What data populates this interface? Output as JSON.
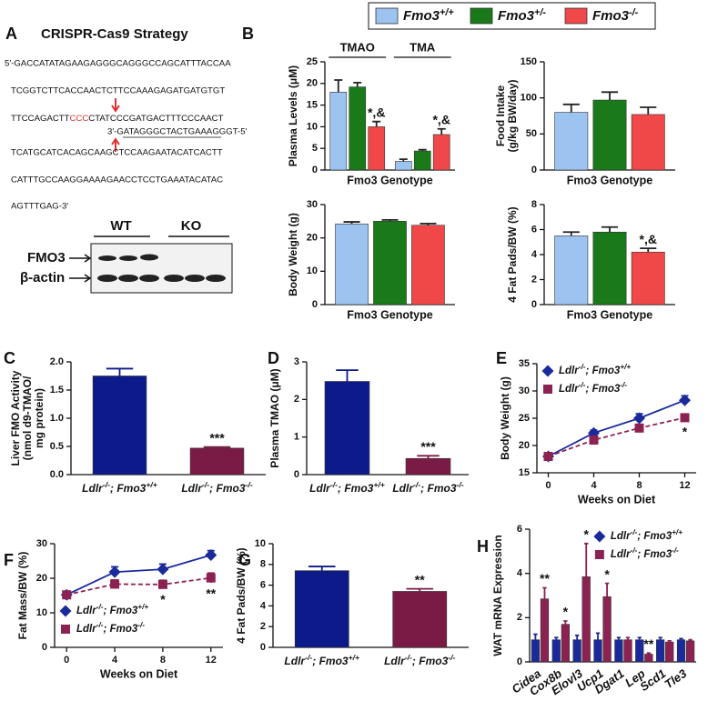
{
  "panel_labels": [
    "A",
    "B",
    "C",
    "D",
    "E",
    "F",
    "G",
    "H"
  ],
  "strategy": {
    "title": "CRISPR-Cas9 Strategy",
    "sequence": {
      "line1": "5′-GACCATATAGAAGAGGGCAGGGCCAGCATTTACCAA",
      "line2": "TCGGTCTTCACCAACTCTTCCAAAGAGATGATGTGT",
      "line3_start": "TTCCAGACTT",
      "pam": "CCC",
      "line3_end": "CTATCCCGATGACTTTCCCAACT",
      "guide": "3′-GATAGGGCTACTGAAAGGGT-5′",
      "line4": "TCATGCATCACAGCAAGCTCCAAGAATACATCACTT",
      "line5": "CATTTGCCAAGGAAAAGAACCTCCTGAAATACATAC",
      "line6": "AGTTTGAG-3′"
    },
    "blot": {
      "lanes": [
        "WT",
        "KO"
      ],
      "bands": [
        "FMO3",
        "β-actin"
      ]
    }
  },
  "shared_legend": [
    {
      "name": "Fmo3+/+",
      "color": "#9dc3f0"
    },
    {
      "name": "Fmo3+/-",
      "color": "#1a7a1a"
    },
    {
      "name": "Fmo3-/-",
      "color": "#f04848"
    }
  ],
  "chart_data": [
    {
      "type": "bar",
      "ylabel": "Plasma Levels (μM)",
      "xlabel": "Fmo3 Genotype",
      "categories": [
        "TMAO",
        "TMA"
      ],
      "category_position": "top",
      "ylim": [
        0,
        25
      ],
      "yticks": [
        0,
        5,
        10,
        15,
        20,
        25
      ],
      "series": [
        {
          "color": "#9dc3f0",
          "values": [
            18,
            2
          ],
          "errors": [
            2.8,
            0.5
          ]
        },
        {
          "color": "#1a7a1a",
          "values": [
            19.2,
            4.4
          ],
          "errors": [
            1,
            0.3
          ]
        },
        {
          "color": "#f04848",
          "values": [
            10,
            8.2
          ],
          "errors": [
            1.2,
            1.3
          ],
          "significance": [
            "*,&",
            "*,&"
          ]
        }
      ]
    },
    {
      "type": "bar",
      "ylabel": [
        "Food Intake",
        "(g/kg BW/day)"
      ],
      "xlabel": "Fmo3 Genotype",
      "ylim": [
        0,
        150
      ],
      "yticks": [
        0,
        50,
        100,
        150
      ],
      "series": [
        {
          "color": "#9dc3f0",
          "values": [
            80
          ],
          "errors": [
            11
          ]
        },
        {
          "color": "#1a7a1a",
          "values": [
            97
          ],
          "errors": [
            11
          ]
        },
        {
          "color": "#f04848",
          "values": [
            77
          ],
          "errors": [
            10
          ]
        }
      ]
    },
    {
      "type": "bar",
      "ylabel": "Body Weight (g)",
      "xlabel": "Fmo3 Genotype",
      "ylim": [
        0,
        30
      ],
      "yticks": [
        0,
        10,
        20,
        30
      ],
      "series": [
        {
          "color": "#9dc3f0",
          "values": [
            24.2
          ],
          "errors": [
            0.6
          ]
        },
        {
          "color": "#1a7a1a",
          "values": [
            25
          ],
          "errors": [
            0.4
          ]
        },
        {
          "color": "#f04848",
          "values": [
            23.8
          ],
          "errors": [
            0.5
          ]
        }
      ]
    },
    {
      "type": "bar",
      "ylabel": "4 Fat Pads/BW (%)",
      "xlabel": "Fmo3 Genotype",
      "ylim": [
        0,
        8
      ],
      "yticks": [
        0,
        2,
        4,
        6,
        8
      ],
      "series": [
        {
          "color": "#9dc3f0",
          "values": [
            5.5
          ],
          "errors": [
            0.3
          ]
        },
        {
          "color": "#1a7a1a",
          "values": [
            5.8
          ],
          "errors": [
            0.4
          ]
        },
        {
          "color": "#f04848",
          "values": [
            4.2
          ],
          "errors": [
            0.3
          ],
          "significance": [
            "*,&"
          ]
        }
      ]
    },
    {
      "type": "bar",
      "ylabel": [
        "Liver FMO Activity",
        "(nmol d9-TMAO/",
        "mg protein)"
      ],
      "categories": [
        "Ldlr-/-; Fmo3+/+",
        "Ldlr-/-; Fmo3-/-"
      ],
      "ylim": [
        0,
        2
      ],
      "yticks": [
        {
          "value": 0,
          "label": "0.0"
        },
        {
          "value": 0.5,
          "label": "0.5"
        },
        {
          "value": 1,
          "label": "1.0"
        },
        {
          "value": 1.5,
          "label": "1.5"
        },
        {
          "value": 2,
          "label": "2.0"
        }
      ],
      "colors": [
        "#0d1a8a",
        "#7a1b45"
      ],
      "values": [
        1.75,
        0.47
      ],
      "errors": [
        0.13,
        0.02
      ],
      "significance": [
        null,
        "***"
      ]
    },
    {
      "type": "bar",
      "ylabel": "Plasma TMAO (μM)",
      "categories": [
        "Ldlr-/-; Fmo3+/+",
        "Ldlr-/-; Fmo3-/-"
      ],
      "ylim": [
        0,
        3
      ],
      "yticks": [
        0,
        1,
        2,
        3
      ],
      "colors": [
        "#0d1a8a",
        "#7a1b45"
      ],
      "values": [
        2.48,
        0.43
      ],
      "errors": [
        0.3,
        0.07
      ],
      "significance": [
        null,
        "***"
      ]
    },
    {
      "type": "line",
      "ylabel": "Body Weight (g)",
      "xlabel": "Weeks on Diet",
      "x": [
        0,
        4,
        8,
        12
      ],
      "xlim": [
        -1,
        13
      ],
      "xticks": [
        0,
        4,
        8,
        12
      ],
      "ylim": [
        15,
        35
      ],
      "yticks": [
        15,
        20,
        25,
        30,
        35
      ],
      "legend": "top-left",
      "series": [
        {
          "name": "Ldlr-/-; Fmo3+/+",
          "color": "#1a2a9a",
          "marker": "diamond",
          "values": [
            18,
            22.3,
            25,
            28.3
          ],
          "errors": [
            0.3,
            0.5,
            0.8,
            0.8
          ]
        },
        {
          "name": "Ldlr-/-; Fmo3-/-",
          "color": "#8b2252",
          "marker": "square",
          "dash": true,
          "values": [
            18,
            21,
            23.2,
            25.1
          ],
          "errors": [
            0.3,
            0.4,
            0.6,
            0.6
          ],
          "significance": [
            null,
            null,
            null,
            "*"
          ]
        }
      ]
    },
    {
      "type": "line",
      "ylabel": "Fat Mass/BW (%)",
      "xlabel": "Weeks on Diet",
      "x": [
        0,
        4,
        8,
        12
      ],
      "xlim": [
        -1,
        13
      ],
      "xticks": [
        0,
        4,
        8,
        12
      ],
      "ylim": [
        0,
        30
      ],
      "yticks": [
        0,
        10,
        20,
        30
      ],
      "legend": "bottom-left",
      "series": [
        {
          "name": "Ldlr-/-; Fmo3+/+",
          "color": "#1a2a9a",
          "marker": "diamond",
          "values": [
            15.2,
            21.8,
            22.6,
            26.7
          ],
          "errors": [
            0.8,
            1.5,
            1.5,
            1.3
          ]
        },
        {
          "name": "Ldlr-/-; Fmo3-/-",
          "color": "#8b2252",
          "marker": "square",
          "dash": true,
          "values": [
            15.2,
            18.3,
            18.2,
            20.1
          ],
          "errors": [
            0.8,
            1.2,
            1.2,
            1.4
          ],
          "significance": [
            null,
            null,
            "*",
            "**"
          ]
        }
      ]
    },
    {
      "type": "bar",
      "ylabel": "4 Fat Pads/BW (%)",
      "categories": [
        "Ldlr-/-; Fmo3+/+",
        "Ldlr-/-; Fmo3-/-"
      ],
      "ylim": [
        0,
        10
      ],
      "yticks": [
        0,
        2,
        4,
        6,
        8,
        10
      ],
      "colors": [
        "#0d1a8a",
        "#7a1b45"
      ],
      "values": [
        7.4,
        5.4
      ],
      "errors": [
        0.4,
        0.25
      ],
      "significance": [
        null,
        "**"
      ]
    },
    {
      "type": "bar",
      "ylabel": "WAT mRNA Expression",
      "categories": [
        "Cidea",
        "Cox8b",
        "Elovl3",
        "Ucp1",
        "Dgat1",
        "Lep",
        "Scd1",
        "Tle3"
      ],
      "ylim": [
        0,
        6
      ],
      "yticks": [
        0,
        2,
        4,
        6
      ],
      "legend": "top-right",
      "series": [
        {
          "name": "Ldlr-/-; Fmo3+/+",
          "color": "#1a2a9a",
          "marker": "diamond",
          "values": [
            1,
            1,
            1,
            1,
            1,
            1,
            1,
            1
          ],
          "errors": [
            0.25,
            0.1,
            0.2,
            0.3,
            0.1,
            0.1,
            0.1,
            0.05
          ]
        },
        {
          "name": "Ldlr-/-; Fmo3-/-",
          "color": "#8b2252",
          "marker": "square",
          "values": [
            2.85,
            1.7,
            3.85,
            2.95,
            1,
            0.35,
            0.9,
            0.95
          ],
          "errors": [
            0.5,
            0.15,
            1.5,
            0.6,
            0.1,
            0.05,
            0.05,
            0.05
          ],
          "significance": [
            "**",
            "*",
            "*",
            "*",
            null,
            "**",
            null,
            null
          ]
        }
      ]
    }
  ]
}
